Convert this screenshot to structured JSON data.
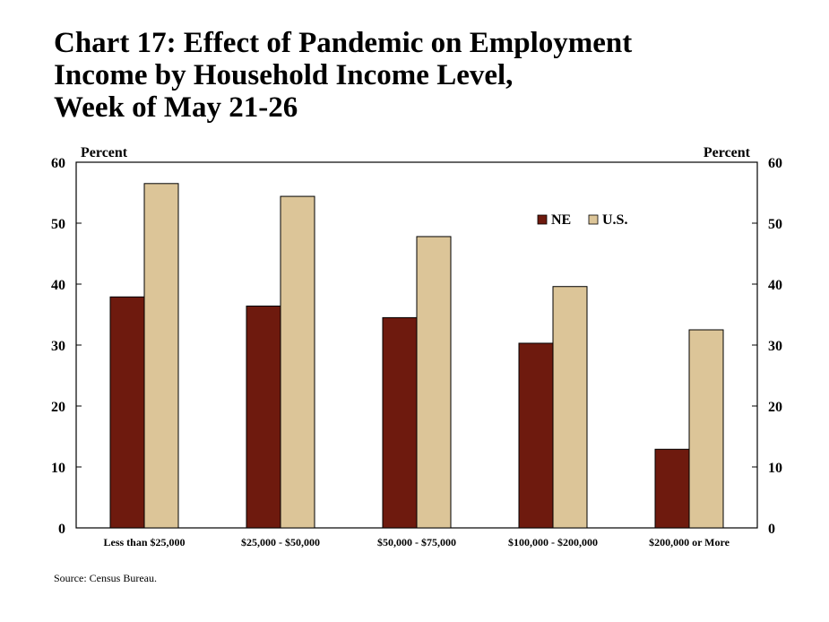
{
  "title_lines": [
    "Chart 17: Effect of Pandemic on Employment",
    "Income by Household Income Level,",
    "Week of May 21-26"
  ],
  "source": "Source: Census Bureau.",
  "colors": {
    "NE": "#6e1a0e",
    "U.S.": "#dcc598",
    "axis": "#000000"
  },
  "chart_data": {
    "type": "bar",
    "title": "Chart 17: Effect of Pandemic on Employment Income by Household Income Level, Week of May 21-26",
    "categories": [
      "Less than $25,000",
      "$25,000 - $50,000",
      "$50,000 - $75,000",
      "$100,000 - $200,000",
      "$200,000 or More"
    ],
    "series": [
      {
        "name": "NE",
        "values": [
          37.9,
          36.4,
          34.5,
          30.3,
          12.9
        ]
      },
      {
        "name": "U.S.",
        "values": [
          56.5,
          54.4,
          47.8,
          39.6,
          32.5
        ]
      }
    ],
    "ylabel_left": "Percent",
    "ylabel_right": "Percent",
    "ylim": [
      0,
      60
    ],
    "yticks": [
      0,
      10,
      20,
      30,
      40,
      50,
      60
    ],
    "legend_position": "top-right",
    "grid": false
  }
}
